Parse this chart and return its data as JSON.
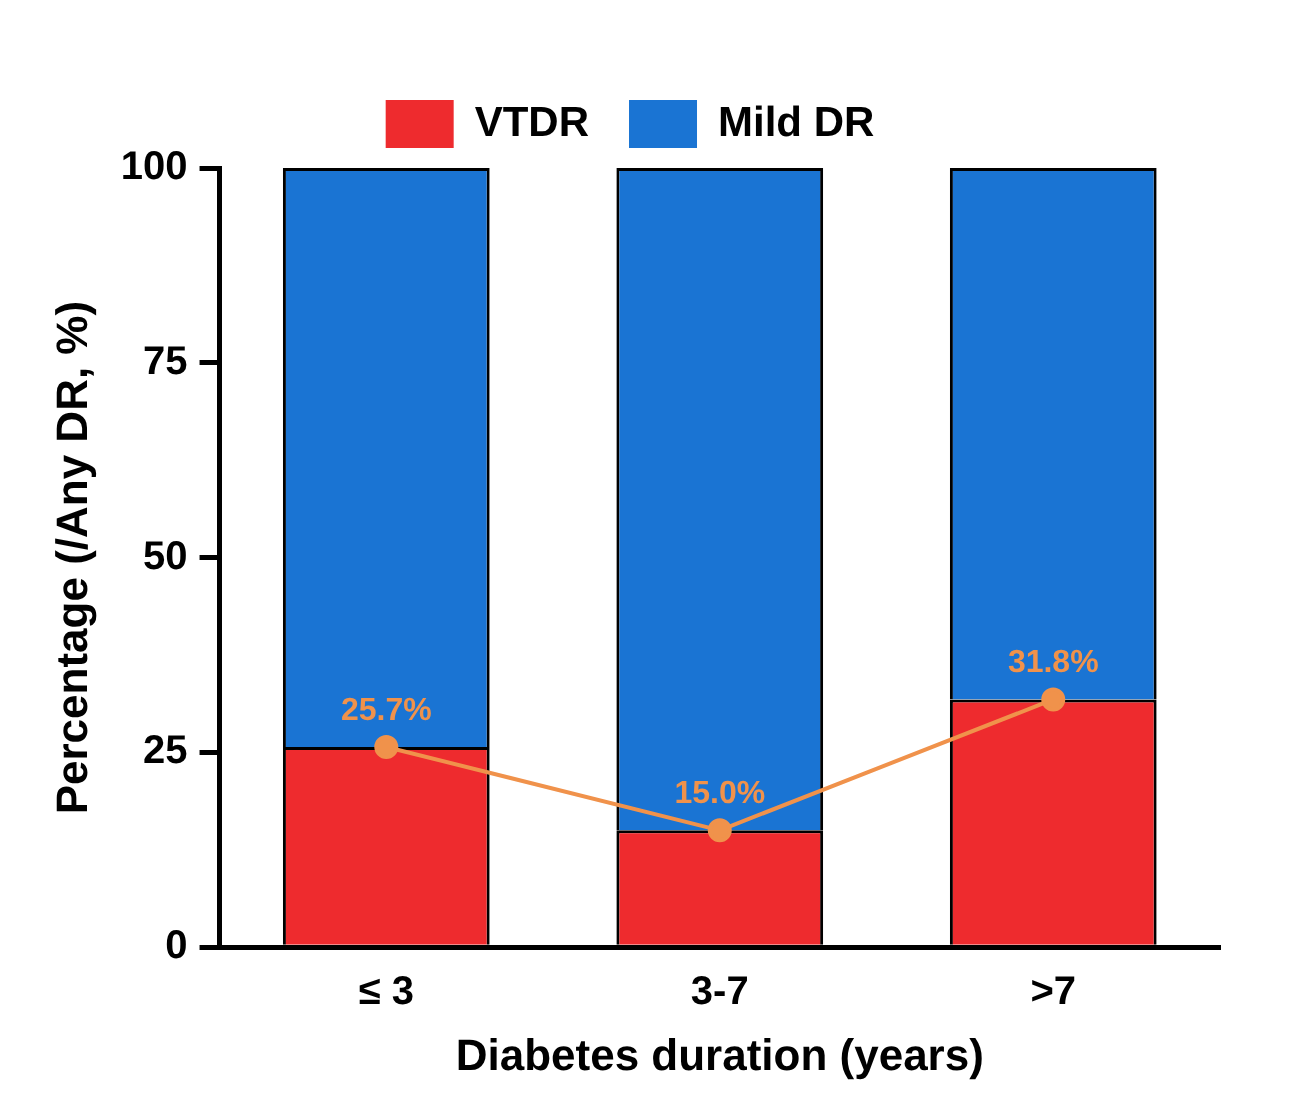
{
  "chart_data": {
    "type": "bar",
    "stacked": true,
    "xlabel": "Diabetes duration (years)",
    "ylabel": "Percentage (/Any DR, %)",
    "categories": [
      "≤ 3",
      "3-7",
      ">7"
    ],
    "series": [
      {
        "name": "VTDR",
        "color": "#ee2b2e",
        "values": [
          25.7,
          15.0,
          31.8
        ]
      },
      {
        "name": "Mild DR",
        "color": "#1a74d3",
        "values": [
          74.3,
          85.0,
          68.2
        ]
      },
      {
        "type": "line",
        "color": "#f0924b",
        "values": [
          25.7,
          15.0,
          31.8
        ],
        "value_labels": [
          "25.7%",
          "15.0%",
          "31.8%"
        ]
      }
    ],
    "ylim": [
      0,
      100
    ],
    "yticks": [
      0,
      25,
      50,
      75,
      100
    ],
    "grid": false,
    "legend": "top",
    "marker": "circle"
  }
}
